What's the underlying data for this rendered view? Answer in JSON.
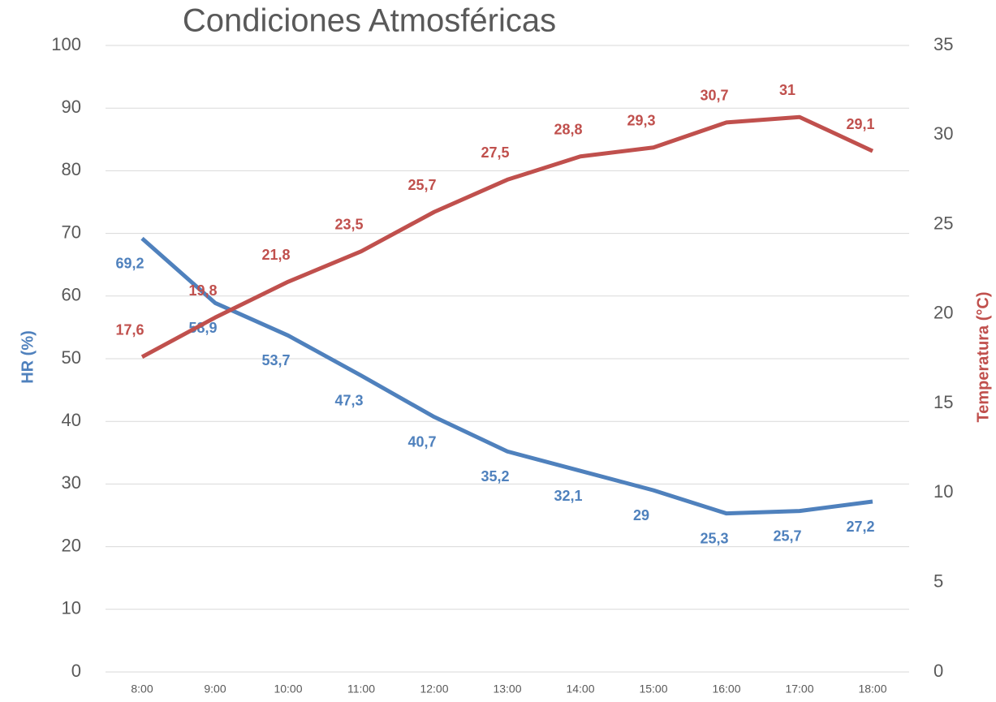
{
  "chart_data": {
    "type": "line",
    "title": "Condiciones Atmosféricas",
    "categories": [
      "8:00",
      "9:00",
      "10:00",
      "11:00",
      "12:00",
      "13:00",
      "14:00",
      "15:00",
      "16:00",
      "17:00",
      "18:00"
    ],
    "ylabel": "HR (%)",
    "y2label": "Temperatura (°C)",
    "ylim": [
      0,
      100
    ],
    "yticks": [
      0,
      10,
      20,
      30,
      40,
      50,
      60,
      70,
      80,
      90,
      100
    ],
    "y2lim": [
      0,
      35
    ],
    "y2ticks": [
      0,
      5,
      10,
      15,
      20,
      25,
      30,
      35
    ],
    "grid": true,
    "series": [
      {
        "name": "HR (%)",
        "color": "#4f81bd",
        "axis": "y",
        "values": [
          69.2,
          58.9,
          53.7,
          47.3,
          40.7,
          35.2,
          32.1,
          29,
          25.3,
          25.7,
          27.2
        ],
        "value_labels": [
          "69,2",
          "58,9",
          "53,7",
          "47,3",
          "40,7",
          "35,2",
          "32,1",
          "29",
          "25,3",
          "25,7",
          "27,2"
        ]
      },
      {
        "name": "Temperatura (°C)",
        "color": "#c0504d",
        "axis": "y2",
        "values": [
          17.6,
          19.8,
          21.8,
          23.5,
          25.7,
          27.5,
          28.8,
          29.3,
          30.7,
          31,
          29.1
        ],
        "value_labels": [
          "17,6",
          "19,8",
          "21,8",
          "23,5",
          "25,7",
          "27,5",
          "28,8",
          "29,3",
          "30,7",
          "31",
          "29,1"
        ]
      }
    ]
  }
}
